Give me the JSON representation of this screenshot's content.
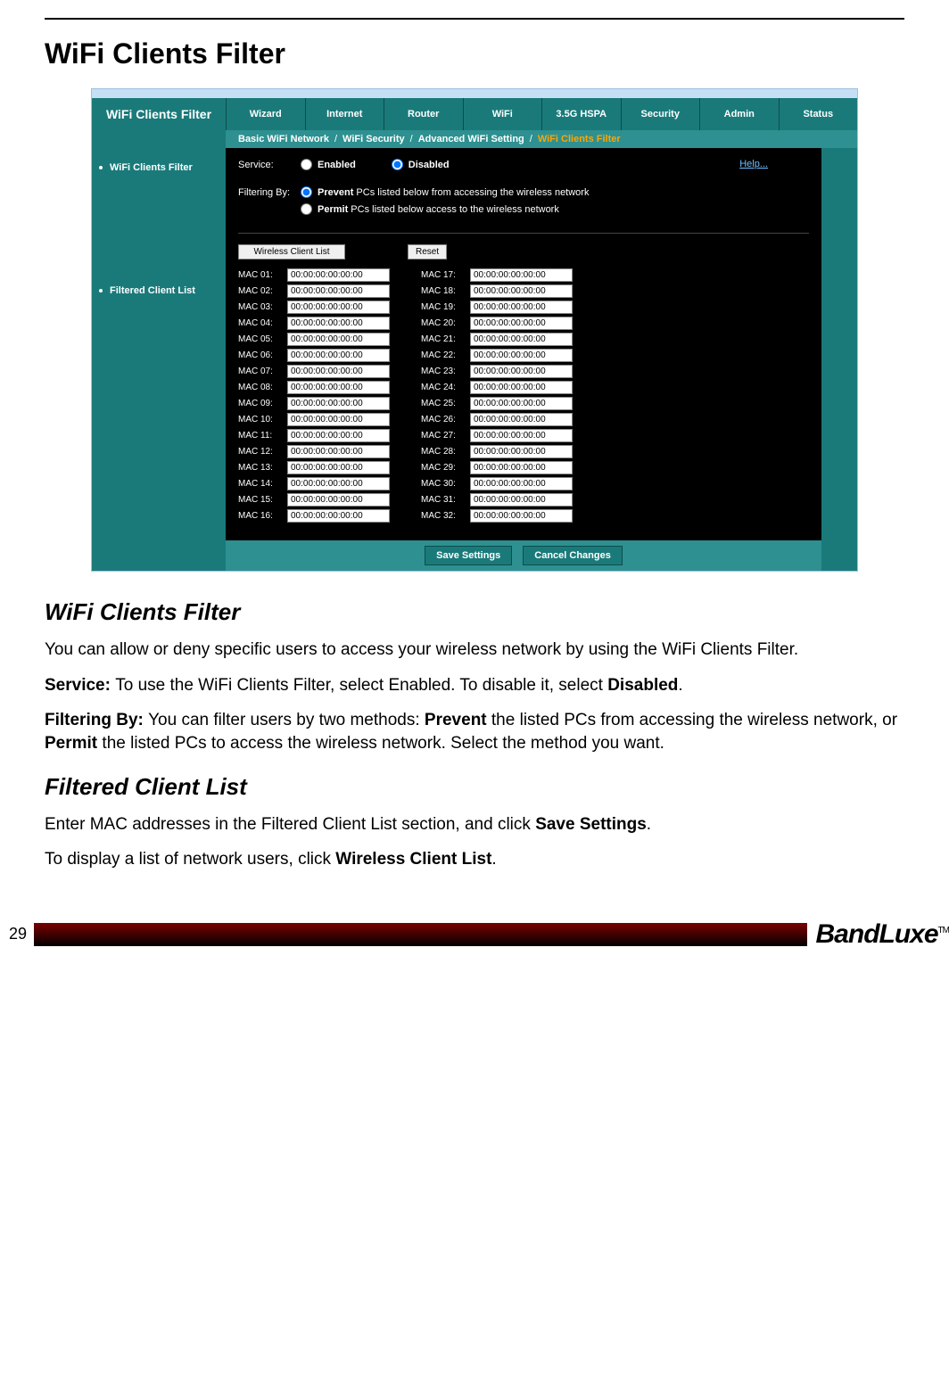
{
  "page": {
    "title": "WiFi Clients Filter",
    "number": "29",
    "brand": "BandLuxe",
    "brand_tm": "TM"
  },
  "router": {
    "header_title": "WiFi Clients Filter",
    "tabs": [
      "Wizard",
      "Internet",
      "Router",
      "WiFi",
      "3.5G HSPA",
      "Security",
      "Admin",
      "Status"
    ],
    "active_tab_index": 3,
    "subtabs": [
      "Basic WiFi Network",
      "WiFi Security",
      "Advanced WiFi Setting",
      "WiFi Clients Filter"
    ],
    "active_subtab_index": 3,
    "sidebar": [
      "WiFi Clients Filter",
      "Filtered Client List"
    ],
    "help_label": "Help...",
    "service": {
      "label": "Service:",
      "enabled_label": "Enabled",
      "disabled_label": "Disabled",
      "selected": "disabled"
    },
    "filtering": {
      "label": "Filtering By:",
      "prevent_prefix": "Prevent",
      "prevent_rest": " PCs listed below from accessing the wireless network",
      "permit_prefix": "Permit",
      "permit_rest": " PCs listed below access to the wireless network"
    },
    "buttons": {
      "wireless_client_list": "Wireless Client List",
      "reset": "Reset",
      "save": "Save Settings",
      "cancel": "Cancel Changes"
    },
    "mac_default": "00:00:00:00:00:00",
    "mac_count": 32
  },
  "doc": {
    "h2_1": "WiFi Clients Filter",
    "p1": "You can allow or deny specific users to access your wireless network by using the WiFi Clients Filter.",
    "p2_b": "Service: ",
    "p2": "To use the WiFi Clients Filter, select Enabled. To disable it, select ",
    "p2_b2": "Disabled",
    "p2_tail": ".",
    "p3_b": "Filtering By: ",
    "p3_a": "You can filter users by two methods: ",
    "p3_b2": "Prevent",
    "p3_c": " the listed PCs from accessing the wireless network, or ",
    "p3_b3": "Permit",
    "p3_d": " the listed PCs to access the wireless network. Select the method you want.",
    "h2_2": "Filtered Client List",
    "p4_a": "Enter MAC addresses in the Filtered Client List section, and click ",
    "p4_b": "Save Settings",
    "p4_c": ".",
    "p5_a": "To display a list of network users, click ",
    "p5_b": "Wireless Client List",
    "p5_c": "."
  }
}
